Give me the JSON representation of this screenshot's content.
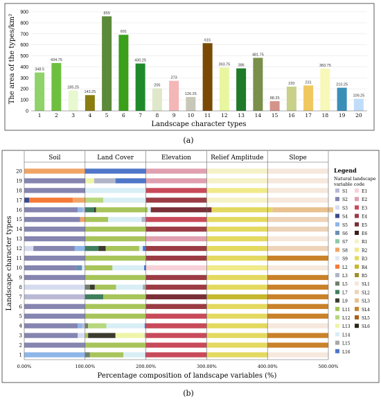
{
  "colors": {
    "S1": "#b9b9d6",
    "S2": "#8585b0",
    "S3": "#d6dcef",
    "S4": "#3b4a8f",
    "S5": "#8eb6e8",
    "S6": "#6a8fb3",
    "S7": "#8fc9a5",
    "S8": "#f0a566",
    "S9": "#e0e7f4",
    "L2": "#f57a37",
    "L3": "#b0b4c8",
    "L5": "#6f7f6a",
    "L7": "#3f7f5c",
    "L9": "#3a3a2f",
    "L11": "#a7c45a",
    "L12": "#b7d77e",
    "L13": "#eef5a8",
    "L14": "#d8eef5",
    "L15": "#a8a8a8",
    "L16": "#5076c8",
    "E1": "#f8d0d8",
    "E2": "#e0a0b0",
    "E3": "#c84a5a",
    "E4": "#9b3c45",
    "E5": "#7a2f37",
    "E6": "#3a1e1e",
    "R1": "#f5f2c8",
    "R2": "#f0ea8a",
    "R3": "#e3d960",
    "R4": "#c5b72e",
    "R5": "#9f8f25",
    "SL1": "#f6e8dc",
    "SL2": "#edd3b8",
    "SL3": "#e8c18f",
    "SL4": "#c9822a",
    "SL5": "#a8601a",
    "SL6": "#2a2418"
  },
  "top": {
    "panel_label": "(a)",
    "chart_data": {
      "type": "bar",
      "ylabel": "The area of the types/km²",
      "xlabel": "Landscape character types",
      "ylim": [
        0,
        900
      ],
      "yticks": [
        "0",
        "100",
        "200",
        "300",
        "400",
        "500",
        "600",
        "700",
        "800",
        "900"
      ],
      "categories": [
        "1",
        "2",
        "3",
        "4",
        "5",
        "6",
        "7",
        "8",
        "9",
        "10",
        "11",
        "12",
        "13",
        "14",
        "15",
        "16",
        "17",
        "18",
        "19",
        "20"
      ],
      "values": [
        348.5,
        434.75,
        185.25,
        143.25,
        859,
        691,
        430.25,
        205,
        273,
        126.25,
        615,
        393.75,
        386,
        481.75,
        88.25,
        220,
        231,
        383.75,
        210.25,
        109.25
      ],
      "value_labels": [
        "348.5",
        "434.75",
        "185.25",
        "143.25",
        "859",
        "691",
        "430.25",
        "205",
        "273",
        "126.25",
        "615",
        "393.75",
        "386",
        "481.75",
        "88.25",
        "220",
        "231",
        "383.75",
        "210.25",
        "109.25"
      ],
      "bar_colors": [
        "#8fd36a",
        "#6fbf3f",
        "#e8f8d0",
        "#8a7d10",
        "#5b8a3a",
        "#3aa01a",
        "#1f8a2a",
        "#dfe8c8",
        "#f4b6b6",
        "#c8c8b8",
        "#7a4a05",
        "#e8f6a0",
        "#1f7a2a",
        "#7a8f4a",
        "#d4948a",
        "#c8d08a",
        "#f0c860",
        "#f8f8b8",
        "#3a8fb8",
        "#c0dcf8"
      ]
    }
  },
  "bottom": {
    "panel_label": "(b)",
    "chart_data": {
      "type": "bar",
      "orientation": "horizontal-stacked",
      "ylabel": "Landscape character types",
      "xlabel": "Percentage composition of landscape variables (%)",
      "group_headers": [
        "Soil",
        "Land Cover",
        "Elevation",
        "Relief Amplitude",
        "Slope"
      ],
      "xticks": [
        "0.00%",
        "100.00%",
        "200.00%",
        "300.00%",
        "400.00%",
        "500.00%"
      ],
      "xlim": [
        0,
        500
      ],
      "categories": [
        "1",
        "2",
        "3",
        "4",
        "5",
        "6",
        "7",
        "8",
        "9",
        "10",
        "11",
        "12",
        "13",
        "14",
        "15",
        "16",
        "17",
        "18",
        "19",
        "20"
      ],
      "rows": [
        [
          [
            "S5",
            100
          ],
          [
            "L5",
            8
          ],
          [
            "L11",
            55
          ],
          [
            "L14",
            36
          ],
          [
            "L16",
            1
          ],
          [
            "E3",
            100
          ],
          [
            "R3",
            100
          ],
          [
            "SL1",
            100
          ]
        ],
        [
          [
            "S2",
            100
          ],
          [
            "L11",
            100
          ],
          [
            "E3",
            100
          ],
          [
            "R3",
            100
          ],
          [
            "SL4",
            100
          ]
        ],
        [
          [
            "S2",
            88
          ],
          [
            "S3",
            12
          ],
          [
            "L11",
            5
          ],
          [
            "L9",
            45
          ],
          [
            "L13",
            48
          ],
          [
            "L15",
            2
          ],
          [
            "E3",
            100
          ],
          [
            "R3",
            100
          ],
          [
            "SL4",
            100
          ]
        ],
        [
          [
            "S2",
            88
          ],
          [
            "S5",
            7
          ],
          [
            "S1",
            5
          ],
          [
            "L5",
            5
          ],
          [
            "L12",
            30
          ],
          [
            "L14",
            63
          ],
          [
            "L16",
            2
          ],
          [
            "E3",
            100
          ],
          [
            "R3",
            100
          ],
          [
            "SL1",
            100
          ]
        ],
        [
          [
            "S2",
            100
          ],
          [
            "L11",
            100
          ],
          [
            "E3",
            100
          ],
          [
            "R3",
            100
          ],
          [
            "SL4",
            100
          ]
        ],
        [
          [
            "S2",
            100
          ],
          [
            "L11",
            100
          ],
          [
            "E4",
            100
          ],
          [
            "R3",
            100
          ],
          [
            "SL4",
            100
          ]
        ],
        [
          [
            "S1",
            100
          ],
          [
            "L7",
            30
          ],
          [
            "L11",
            70
          ],
          [
            "E5",
            100
          ],
          [
            "R4",
            100
          ],
          [
            "SL4",
            100
          ]
        ],
        [
          [
            "S3",
            100
          ],
          [
            "L5",
            8
          ],
          [
            "L9",
            8
          ],
          [
            "L11",
            35
          ],
          [
            "L14",
            44
          ],
          [
            "L15",
            5
          ],
          [
            "E4",
            100
          ],
          [
            "R3",
            100
          ],
          [
            "SL4",
            100
          ]
        ],
        [
          [
            "S2",
            100
          ],
          [
            "L11",
            100
          ],
          [
            "E4",
            100
          ],
          [
            "R3",
            100
          ],
          [
            "SL4",
            100
          ]
        ],
        [
          [
            "S2",
            85
          ],
          [
            "S6",
            10
          ],
          [
            "S9",
            5
          ],
          [
            "L11",
            45
          ],
          [
            "L14",
            52
          ],
          [
            "L16",
            3
          ],
          [
            "E1",
            100
          ],
          [
            "R2",
            100
          ],
          [
            "SL1",
            100
          ]
        ],
        [
          [
            "S2",
            100
          ],
          [
            "L11",
            100
          ],
          [
            "E4",
            100
          ],
          [
            "R3",
            100
          ],
          [
            "SL4",
            100
          ]
        ],
        [
          [
            "S3",
            15
          ],
          [
            "S2",
            68
          ],
          [
            "S5",
            17
          ],
          [
            "L7",
            22
          ],
          [
            "L9",
            12
          ],
          [
            "L11",
            55
          ],
          [
            "L14",
            6
          ],
          [
            "L16",
            5
          ],
          [
            "E4",
            100
          ],
          [
            "R3",
            100
          ],
          [
            "SL2",
            100
          ]
        ],
        [
          [
            "S2",
            100
          ],
          [
            "L11",
            100
          ],
          [
            "E2",
            100
          ],
          [
            "R3",
            100
          ],
          [
            "SL1",
            100
          ]
        ],
        [
          [
            "S2",
            100
          ],
          [
            "L11",
            100
          ],
          [
            "E4",
            100
          ],
          [
            "R3",
            100
          ],
          [
            "SL2",
            100
          ]
        ],
        [
          [
            "S2",
            92
          ],
          [
            "S8",
            8
          ],
          [
            "L11",
            38
          ],
          [
            "L14",
            55
          ],
          [
            "L3",
            7
          ],
          [
            "E3",
            100
          ],
          [
            "R3",
            100
          ],
          [
            "SL2",
            100
          ]
        ],
        [
          [
            "S2",
            88
          ],
          [
            "S5",
            8
          ],
          [
            "S1",
            4
          ],
          [
            "L7",
            15
          ],
          [
            "L9",
            3
          ],
          [
            "L11",
            85
          ],
          [
            "L14",
            5
          ],
          [
            "E5",
            100
          ],
          [
            "R3",
            100
          ],
          [
            "SL3",
            100
          ]
        ],
        [
          [
            "S4",
            8
          ],
          [
            "L2",
            72
          ],
          [
            "S8",
            20
          ],
          [
            "L12",
            30
          ],
          [
            "L14",
            70
          ],
          [
            "E4",
            100
          ],
          [
            "R1",
            100
          ],
          [
            "SL1",
            100
          ]
        ],
        [
          [
            "S2",
            100
          ],
          [
            "L14",
            100
          ],
          [
            "E3",
            100
          ],
          [
            "R2",
            100
          ],
          [
            "SL1",
            100
          ]
        ],
        [
          [
            "S2",
            100
          ],
          [
            "L13",
            15
          ],
          [
            "L3",
            35
          ],
          [
            "L16",
            50
          ],
          [
            "E2",
            100
          ],
          [
            "R1",
            100
          ],
          [
            "SL1",
            100
          ]
        ],
        [
          [
            "S8",
            100
          ],
          [
            "L16",
            100
          ],
          [
            "E2",
            100
          ],
          [
            "R1",
            100
          ],
          [
            "SL1",
            100
          ]
        ]
      ]
    },
    "legend": {
      "title": "Legend",
      "subtitle_line1": "Natural landscape",
      "subtitle_line2": "variable code",
      "left": [
        "S1",
        "S2",
        "S3",
        "S4",
        "S5",
        "S6",
        "S7",
        "S8",
        "S9",
        "L2",
        "L3",
        "L5",
        "L7",
        "L9",
        "L11",
        "L12",
        "L13",
        "L14",
        "L15",
        "L16"
      ],
      "right": [
        "E1",
        "E2",
        "E3",
        "E4",
        "E5",
        "E6",
        "R1",
        "R2",
        "R3",
        "R4",
        "R5",
        "SL1",
        "SL2",
        "SL3",
        "SL4",
        "SL5",
        "SL6"
      ]
    }
  }
}
